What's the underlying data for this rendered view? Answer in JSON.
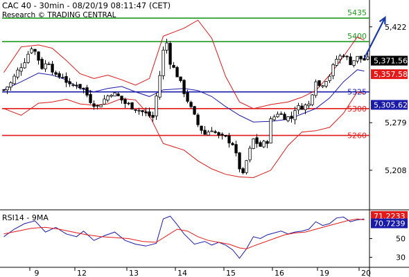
{
  "header": {
    "title": "CAC 40 - 30min - 08/20/19 08:11:47 (CET)",
    "source": "Research © TRADING CENTRAL"
  },
  "rsi_panel": {
    "label": "RSI14 - 9MA"
  },
  "colors": {
    "green": "#1f9a1f",
    "blue": "#1a1aa8",
    "red": "#e31a1a",
    "price": "#000000",
    "arrow": "#1a3aa6"
  },
  "chart_data": [
    {
      "type": "candlestick",
      "title": "CAC 40 - 30min",
      "ylim": [
        5150,
        5460
      ],
      "yticks": [
        "5,422",
        "5,279",
        "5,208"
      ],
      "ytick_values": [
        5422,
        5279,
        5208
      ],
      "x_day_labels": [
        "9",
        "12",
        "13",
        "14",
        "15",
        "16",
        "19",
        "20"
      ],
      "x_day_positions": [
        8,
        21,
        36,
        50,
        64,
        78,
        91,
        103
      ],
      "bars": 106,
      "close_path": [
        [
          0,
          5328
        ],
        [
          2,
          5338
        ],
        [
          4,
          5356
        ],
        [
          6,
          5372
        ],
        [
          8,
          5392
        ],
        [
          9,
          5385
        ],
        [
          11,
          5362
        ],
        [
          13,
          5370
        ],
        [
          15,
          5347
        ],
        [
          17,
          5349
        ],
        [
          19,
          5333
        ],
        [
          21,
          5337
        ],
        [
          23,
          5329
        ],
        [
          25,
          5312
        ],
        [
          27,
          5303
        ],
        [
          29,
          5314
        ],
        [
          31,
          5324
        ],
        [
          33,
          5318
        ],
        [
          35,
          5308
        ],
        [
          37,
          5303
        ],
        [
          39,
          5298
        ],
        [
          41,
          5292
        ],
        [
          43,
          5287
        ],
        [
          45,
          5350
        ],
        [
          46,
          5386
        ],
        [
          47,
          5398
        ],
        [
          48,
          5370
        ],
        [
          50,
          5350
        ],
        [
          52,
          5325
        ],
        [
          54,
          5300
        ],
        [
          56,
          5276
        ],
        [
          58,
          5262
        ],
        [
          60,
          5270
        ],
        [
          62,
          5258
        ],
        [
          64,
          5256
        ],
        [
          66,
          5248
        ],
        [
          68,
          5212
        ],
        [
          69,
          5200
        ],
        [
          70,
          5222
        ],
        [
          72,
          5254
        ],
        [
          74,
          5244
        ],
        [
          76,
          5252
        ],
        [
          77,
          5282
        ],
        [
          79,
          5294
        ],
        [
          81,
          5288
        ],
        [
          83,
          5286
        ],
        [
          84,
          5300
        ],
        [
          86,
          5303
        ],
        [
          88,
          5306
        ],
        [
          90,
          5344
        ],
        [
          91,
          5334
        ],
        [
          92,
          5338
        ],
        [
          94,
          5350
        ],
        [
          96,
          5374
        ],
        [
          98,
          5381
        ],
        [
          100,
          5369
        ],
        [
          102,
          5376
        ],
        [
          104,
          5373
        ]
      ],
      "bollinger_path": {
        "upper": [
          [
            0,
            5354
          ],
          [
            5,
            5392
          ],
          [
            10,
            5395
          ],
          [
            14,
            5390
          ],
          [
            18,
            5372
          ],
          [
            22,
            5352
          ],
          [
            26,
            5345
          ],
          [
            30,
            5350
          ],
          [
            34,
            5343
          ],
          [
            38,
            5335
          ],
          [
            42,
            5345
          ],
          [
            46,
            5408
          ],
          [
            52,
            5420
          ],
          [
            56,
            5432
          ],
          [
            60,
            5405
          ],
          [
            64,
            5348
          ],
          [
            68,
            5310
          ],
          [
            72,
            5300
          ],
          [
            77,
            5306
          ],
          [
            82,
            5310
          ],
          [
            86,
            5317
          ],
          [
            90,
            5327
          ],
          [
            94,
            5350
          ],
          [
            98,
            5378
          ],
          [
            102,
            5407
          ],
          [
            104,
            5402
          ]
        ],
        "middle": [
          [
            0,
            5328
          ],
          [
            5,
            5340
          ],
          [
            10,
            5353
          ],
          [
            14,
            5350
          ],
          [
            18,
            5343
          ],
          [
            22,
            5330
          ],
          [
            26,
            5325
          ],
          [
            30,
            5330
          ],
          [
            34,
            5333
          ],
          [
            38,
            5325
          ],
          [
            42,
            5318
          ],
          [
            46,
            5328
          ],
          [
            52,
            5330
          ],
          [
            56,
            5327
          ],
          [
            60,
            5318
          ],
          [
            64,
            5303
          ],
          [
            68,
            5290
          ],
          [
            72,
            5280
          ],
          [
            77,
            5281
          ],
          [
            82,
            5284
          ],
          [
            86,
            5292
          ],
          [
            90,
            5300
          ],
          [
            94,
            5316
          ],
          [
            98,
            5340
          ],
          [
            102,
            5358
          ],
          [
            104,
            5356
          ]
        ],
        "lower": [
          [
            0,
            5300
          ],
          [
            5,
            5290
          ],
          [
            10,
            5308
          ],
          [
            14,
            5310
          ],
          [
            18,
            5314
          ],
          [
            22,
            5307
          ],
          [
            26,
            5305
          ],
          [
            30,
            5307
          ],
          [
            34,
            5315
          ],
          [
            38,
            5313
          ],
          [
            42,
            5290
          ],
          [
            46,
            5248
          ],
          [
            52,
            5238
          ],
          [
            56,
            5222
          ],
          [
            60,
            5210
          ],
          [
            64,
            5202
          ],
          [
            68,
            5198
          ],
          [
            72,
            5197
          ],
          [
            77,
            5208
          ],
          [
            82,
            5245
          ],
          [
            86,
            5265
          ],
          [
            90,
            5267
          ],
          [
            94,
            5272
          ],
          [
            98,
            5293
          ],
          [
            102,
            5325
          ],
          [
            104,
            5322
          ]
        ]
      },
      "levels": [
        {
          "value": 5435,
          "label": "5435",
          "color": "green"
        },
        {
          "value": 5400,
          "label": "5400",
          "color": "green"
        },
        {
          "value": 5325,
          "label": "5325",
          "color": "blue"
        },
        {
          "value": 5300,
          "label": "5300",
          "color": "red"
        },
        {
          "value": 5260,
          "label": "5260",
          "color": "red"
        }
      ],
      "value_tags": [
        {
          "value": 5371.56,
          "label": "5,371.56",
          "bg": "#000000"
        },
        {
          "value": 5357.58,
          "label": "5,357.58",
          "bg": "#e31a1a"
        },
        {
          "value": 5305.62,
          "label": "5,305.62",
          "bg": "#1a1aa8"
        }
      ],
      "target_arrow": {
        "from": [
          104,
          5375
        ],
        "to": [
          110,
          5436
        ]
      }
    },
    {
      "type": "line",
      "title": "RSI14 - 9MA",
      "ylim": [
        20,
        80
      ],
      "yticks": [
        "50",
        "30"
      ],
      "ytick_values": [
        50,
        30
      ],
      "series": [
        {
          "name": "RSI14",
          "color": "#1a1aa8",
          "points": [
            [
              0,
              52
            ],
            [
              3,
              60
            ],
            [
              6,
              66
            ],
            [
              9,
              69
            ],
            [
              12,
              57
            ],
            [
              15,
              62
            ],
            [
              18,
              55
            ],
            [
              21,
              52
            ],
            [
              23,
              58
            ],
            [
              26,
              48
            ],
            [
              29,
              53
            ],
            [
              32,
              57
            ],
            [
              35,
              48
            ],
            [
              38,
              44
            ],
            [
              41,
              42
            ],
            [
              44,
              45
            ],
            [
              46,
              71
            ],
            [
              48,
              74
            ],
            [
              50,
              65
            ],
            [
              52,
              55
            ],
            [
              55,
              44
            ],
            [
              58,
              47
            ],
            [
              60,
              43
            ],
            [
              62,
              46
            ],
            [
              64,
              43
            ],
            [
              66,
              38
            ],
            [
              68,
              29
            ],
            [
              70,
              39
            ],
            [
              72,
              52
            ],
            [
              74,
              50
            ],
            [
              76,
              54
            ],
            [
              78,
              56
            ],
            [
              80,
              58
            ],
            [
              82,
              55
            ],
            [
              84,
              57
            ],
            [
              86,
              58
            ],
            [
              88,
              60
            ],
            [
              90,
              68
            ],
            [
              92,
              64
            ],
            [
              94,
              66
            ],
            [
              96,
              72
            ],
            [
              98,
              73
            ],
            [
              100,
              68
            ],
            [
              102,
              70
            ],
            [
              104,
              71
            ]
          ]
        },
        {
          "name": "9MA",
          "color": "#e31a1a",
          "points": [
            [
              0,
              55
            ],
            [
              4,
              58
            ],
            [
              8,
              61
            ],
            [
              12,
              62
            ],
            [
              16,
              60
            ],
            [
              20,
              57
            ],
            [
              24,
              54
            ],
            [
              28,
              52
            ],
            [
              32,
              51
            ],
            [
              36,
              50
            ],
            [
              40,
              47
            ],
            [
              44,
              46
            ],
            [
              47,
              53
            ],
            [
              50,
              60
            ],
            [
              53,
              58
            ],
            [
              56,
              52
            ],
            [
              59,
              48
            ],
            [
              62,
              46
            ],
            [
              65,
              44
            ],
            [
              68,
              40
            ],
            [
              70,
              39
            ],
            [
              72,
              42
            ],
            [
              75,
              46
            ],
            [
              78,
              50
            ],
            [
              81,
              54
            ],
            [
              84,
              56
            ],
            [
              87,
              57
            ],
            [
              90,
              60
            ],
            [
              93,
              63
            ],
            [
              96,
              66
            ],
            [
              99,
              69
            ],
            [
              102,
              71
            ],
            [
              104,
              70
            ]
          ]
        }
      ],
      "value_tags": [
        {
          "value": 71.2233,
          "label": "71.2233",
          "bg": "#e31a1a"
        },
        {
          "value": 70.7239,
          "label": "70.7239",
          "bg": "#1a1aa8"
        }
      ]
    }
  ]
}
